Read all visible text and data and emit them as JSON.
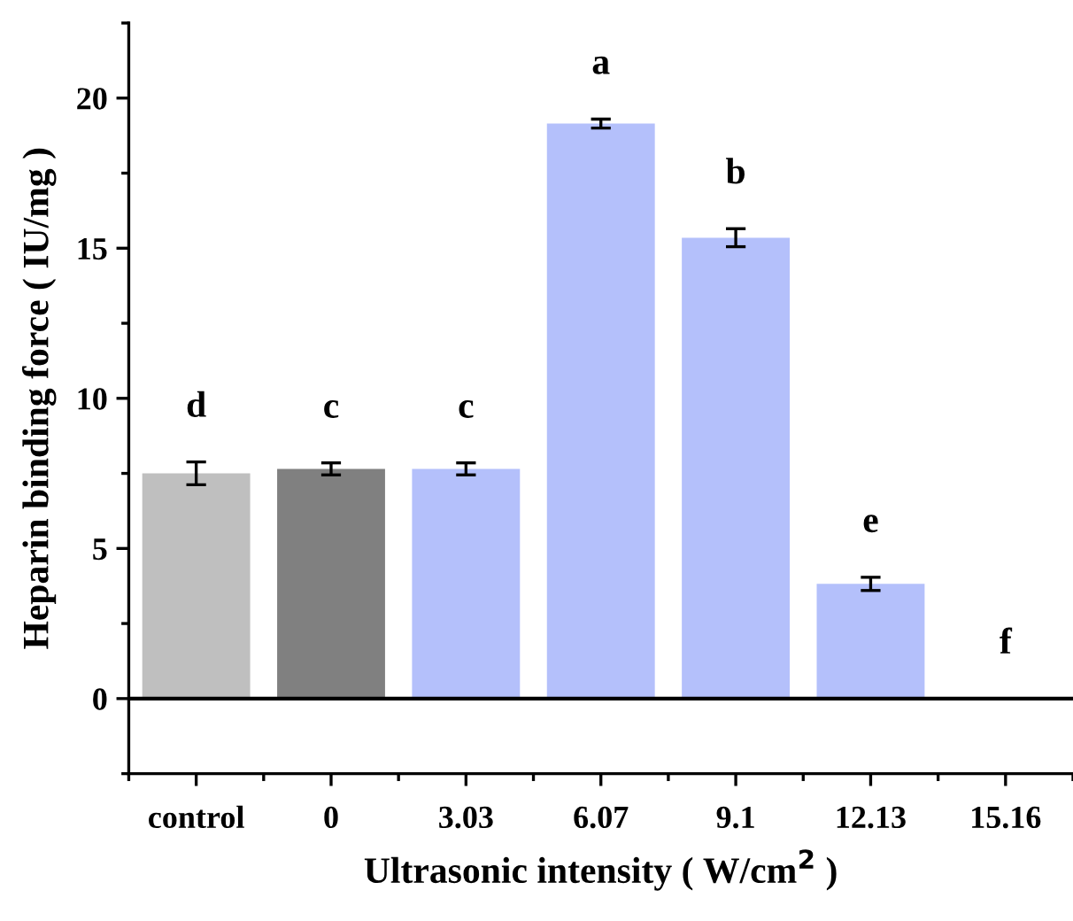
{
  "chart_data": {
    "type": "bar",
    "xlabel": "Ultrasonic intensity ( W/cm$^{2}$ )",
    "ylabel": "Heparin binding force ( IU/mg )",
    "categories": [
      "control",
      "0",
      "3.03",
      "6.07",
      "9.1",
      "12.13",
      "15.16"
    ],
    "values": [
      7.5,
      7.65,
      7.65,
      19.15,
      15.35,
      3.82,
      0
    ],
    "errors": [
      0.38,
      0.2,
      0.2,
      0.15,
      0.3,
      0.22,
      null
    ],
    "colors": [
      "#bfbfbf",
      "#808080",
      "#b4c0fb",
      "#b4c0fb",
      "#b4c0fb",
      "#b4c0fb",
      "#b4c0fb"
    ],
    "ylim": [
      -2.5,
      22.5
    ],
    "yticks": [
      0,
      5,
      10,
      15,
      20
    ],
    "ref_lines": [
      {
        "axis": "y",
        "value": 0,
        "label": null,
        "color": "#000000"
      }
    ],
    "annotations": [
      "d",
      "c",
      "c",
      "a",
      "b",
      "e",
      "f"
    ],
    "grid": false,
    "legend": false
  }
}
